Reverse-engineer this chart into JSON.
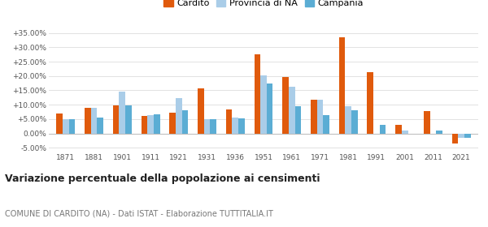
{
  "years": [
    1871,
    1881,
    1901,
    1911,
    1921,
    1931,
    1936,
    1951,
    1961,
    1971,
    1981,
    1991,
    2001,
    2011,
    2021
  ],
  "cardito": [
    6.9,
    9.0,
    9.9,
    6.1,
    7.3,
    15.7,
    8.4,
    27.7,
    19.6,
    11.8,
    33.5,
    21.3,
    2.9,
    7.9,
    -3.6
  ],
  "provincia_na": [
    5.0,
    8.8,
    14.6,
    6.5,
    12.2,
    5.0,
    5.4,
    20.2,
    16.2,
    11.8,
    9.6,
    null,
    1.0,
    null,
    -1.5
  ],
  "campania": [
    4.9,
    5.5,
    9.7,
    6.6,
    8.0,
    5.0,
    5.3,
    17.5,
    9.5,
    6.3,
    8.0,
    3.1,
    null,
    1.0,
    -1.5
  ],
  "cardito_color": "#e05a0c",
  "provincia_color": "#aacde8",
  "campania_color": "#5badd4",
  "title": "Variazione percentuale della popolazione ai censimenti",
  "subtitle": "COMUNE DI CARDITO (NA) - Dati ISTAT - Elaborazione TUTTITALIA.IT",
  "legend_labels": [
    "Cardito",
    "Provincia di NA",
    "Campania"
  ],
  "ylim": [
    -6.5,
    37
  ],
  "yticks": [
    -5,
    0,
    5,
    10,
    15,
    20,
    25,
    30,
    35
  ],
  "ytick_labels": [
    "-5.00%",
    "0.00%",
    "+5.00%",
    "+10.00%",
    "+15.00%",
    "+20.00%",
    "+25.00%",
    "+30.00%",
    "+35.00%"
  ],
  "background_color": "#ffffff",
  "grid_color": "#dddddd"
}
